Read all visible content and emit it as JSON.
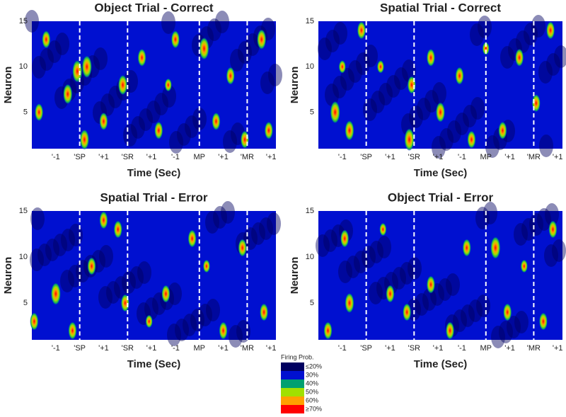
{
  "chart_data": [
    {
      "type": "heatmap",
      "title": "Object Trial - Correct",
      "xlabel": "Time (Sec)",
      "ylabel": "Neuron",
      "ylim": [
        1,
        15
      ],
      "yticks": [
        5,
        10,
        15
      ],
      "xlim": [
        0,
        10.2
      ],
      "xticks": [
        {
          "value": 1,
          "label": "'-1"
        },
        {
          "value": 2,
          "label": "'SP"
        },
        {
          "value": 3,
          "label": "'+1"
        },
        {
          "value": 4,
          "label": "'SR"
        },
        {
          "value": 5,
          "label": "'+1"
        },
        {
          "value": 6,
          "label": "'-1"
        },
        {
          "value": 7,
          "label": "MP"
        },
        {
          "value": 8,
          "label": "'+1"
        },
        {
          "value": 9,
          "label": "'MR"
        },
        {
          "value": 10,
          "label": "'+1"
        }
      ],
      "event_lines": [
        2,
        4,
        7,
        9
      ],
      "hotspots": [
        {
          "x": 0.6,
          "neuron": 13,
          "p": 70
        },
        {
          "x": 1.5,
          "neuron": 7,
          "p": 75
        },
        {
          "x": 1.9,
          "neuron": 9.5,
          "p": 80
        },
        {
          "x": 2.3,
          "neuron": 10,
          "p": 80
        },
        {
          "x": 3.0,
          "neuron": 4,
          "p": 70
        },
        {
          "x": 3.8,
          "neuron": 8,
          "p": 75
        },
        {
          "x": 4.6,
          "neuron": 11,
          "p": 70
        },
        {
          "x": 5.3,
          "neuron": 3,
          "p": 70
        },
        {
          "x": 6.0,
          "neuron": 13,
          "p": 70
        },
        {
          "x": 7.2,
          "neuron": 12,
          "p": 80
        },
        {
          "x": 7.7,
          "neuron": 4,
          "p": 70
        },
        {
          "x": 8.3,
          "neuron": 9,
          "p": 70
        },
        {
          "x": 8.9,
          "neuron": 2,
          "p": 70
        },
        {
          "x": 9.6,
          "neuron": 13,
          "p": 75
        },
        {
          "x": 0.3,
          "neuron": 5,
          "p": 70
        },
        {
          "x": 2.2,
          "neuron": 2,
          "p": 75
        },
        {
          "x": 5.7,
          "neuron": 8,
          "p": 60
        },
        {
          "x": 9.9,
          "neuron": 3,
          "p": 70
        }
      ]
    },
    {
      "type": "heatmap",
      "title": "Spatial Trial - Correct",
      "xlabel": "Time (Sec)",
      "ylabel": "Neuron",
      "ylim": [
        1,
        15
      ],
      "yticks": [
        5,
        10,
        15
      ],
      "xlim": [
        0,
        10.2
      ],
      "xticks": [
        {
          "value": 1,
          "label": "'-1"
        },
        {
          "value": 2,
          "label": "'SP"
        },
        {
          "value": 3,
          "label": "'+1"
        },
        {
          "value": 4,
          "label": "'SR"
        },
        {
          "value": 5,
          "label": "'+1"
        },
        {
          "value": 6,
          "label": "'-1"
        },
        {
          "value": 7,
          "label": "MP"
        },
        {
          "value": 8,
          "label": "'+1"
        },
        {
          "value": 9,
          "label": "'MR"
        },
        {
          "value": 10,
          "label": "'+1"
        }
      ],
      "event_lines": [
        2,
        4,
        7,
        9
      ],
      "hotspots": [
        {
          "x": 0.7,
          "neuron": 5,
          "p": 80
        },
        {
          "x": 1.3,
          "neuron": 3,
          "p": 75
        },
        {
          "x": 1.8,
          "neuron": 14,
          "p": 70
        },
        {
          "x": 2.6,
          "neuron": 10,
          "p": 60
        },
        {
          "x": 3.8,
          "neuron": 2,
          "p": 80
        },
        {
          "x": 3.9,
          "neuron": 8,
          "p": 70
        },
        {
          "x": 4.7,
          "neuron": 11,
          "p": 70
        },
        {
          "x": 5.1,
          "neuron": 5,
          "p": 75
        },
        {
          "x": 5.9,
          "neuron": 9,
          "p": 70
        },
        {
          "x": 6.4,
          "neuron": 2,
          "p": 70
        },
        {
          "x": 7.0,
          "neuron": 12,
          "p": 60
        },
        {
          "x": 7.7,
          "neuron": 3,
          "p": 70
        },
        {
          "x": 8.4,
          "neuron": 11,
          "p": 70
        },
        {
          "x": 9.1,
          "neuron": 6,
          "p": 70
        },
        {
          "x": 9.7,
          "neuron": 14,
          "p": 70
        },
        {
          "x": 1.0,
          "neuron": 10,
          "p": 60
        }
      ]
    },
    {
      "type": "heatmap",
      "title": "Spatial Trial - Error",
      "xlabel": "Time (Sec)",
      "ylabel": "Neuron",
      "ylim": [
        1,
        15
      ],
      "yticks": [
        5,
        10,
        15
      ],
      "xlim": [
        0,
        10.2
      ],
      "xticks": [
        {
          "value": 1,
          "label": "'-1"
        },
        {
          "value": 2,
          "label": "'SP"
        },
        {
          "value": 3,
          "label": "'+1"
        },
        {
          "value": 4,
          "label": "'SR"
        },
        {
          "value": 5,
          "label": "'+1"
        },
        {
          "value": 6,
          "label": "'-1"
        },
        {
          "value": 7,
          "label": "MP"
        },
        {
          "value": 8,
          "label": "'+1"
        },
        {
          "value": 9,
          "label": "'MR"
        },
        {
          "value": 10,
          "label": "'+1"
        }
      ],
      "event_lines": [
        2,
        4,
        7,
        9
      ],
      "hotspots": [
        {
          "x": 0.1,
          "neuron": 3,
          "p": 70
        },
        {
          "x": 1.0,
          "neuron": 6,
          "p": 80
        },
        {
          "x": 1.7,
          "neuron": 2,
          "p": 70
        },
        {
          "x": 2.5,
          "neuron": 9,
          "p": 70
        },
        {
          "x": 3.0,
          "neuron": 14,
          "p": 70
        },
        {
          "x": 3.6,
          "neuron": 13,
          "p": 70
        },
        {
          "x": 3.9,
          "neuron": 5,
          "p": 70
        },
        {
          "x": 4.9,
          "neuron": 3,
          "p": 60
        },
        {
          "x": 5.6,
          "neuron": 6,
          "p": 70
        },
        {
          "x": 6.7,
          "neuron": 12,
          "p": 70
        },
        {
          "x": 7.3,
          "neuron": 9,
          "p": 60
        },
        {
          "x": 8.0,
          "neuron": 2,
          "p": 70
        },
        {
          "x": 8.8,
          "neuron": 11,
          "p": 70
        },
        {
          "x": 9.7,
          "neuron": 4,
          "p": 70
        }
      ]
    },
    {
      "type": "heatmap",
      "title": "Object Trial - Error",
      "xlabel": "Time (Sec)",
      "ylabel": "Neuron",
      "ylim": [
        1,
        15
      ],
      "yticks": [
        5,
        10,
        15
      ],
      "xlim": [
        0,
        10.2
      ],
      "xticks": [
        {
          "value": 1,
          "label": "'-1"
        },
        {
          "value": 2,
          "label": "'SP"
        },
        {
          "value": 3,
          "label": "'+1"
        },
        {
          "value": 4,
          "label": "'SR"
        },
        {
          "value": 5,
          "label": "'+1"
        },
        {
          "value": 6,
          "label": "'-1"
        },
        {
          "value": 7,
          "label": "MP"
        },
        {
          "value": 8,
          "label": "'+1"
        },
        {
          "value": 9,
          "label": "'MR"
        },
        {
          "value": 10,
          "label": "'+1"
        }
      ],
      "event_lines": [
        2,
        4,
        7,
        9
      ],
      "hotspots": [
        {
          "x": 0.4,
          "neuron": 2,
          "p": 70
        },
        {
          "x": 1.1,
          "neuron": 12,
          "p": 70
        },
        {
          "x": 1.3,
          "neuron": 5,
          "p": 75
        },
        {
          "x": 2.7,
          "neuron": 13,
          "p": 60
        },
        {
          "x": 3.0,
          "neuron": 6,
          "p": 70
        },
        {
          "x": 3.7,
          "neuron": 4,
          "p": 70
        },
        {
          "x": 4.7,
          "neuron": 7,
          "p": 70
        },
        {
          "x": 5.5,
          "neuron": 2,
          "p": 70
        },
        {
          "x": 6.2,
          "neuron": 11,
          "p": 70
        },
        {
          "x": 7.4,
          "neuron": 11,
          "p": 80
        },
        {
          "x": 7.9,
          "neuron": 4,
          "p": 70
        },
        {
          "x": 8.6,
          "neuron": 9,
          "p": 60
        },
        {
          "x": 9.4,
          "neuron": 3,
          "p": 70
        },
        {
          "x": 9.8,
          "neuron": 13,
          "p": 70
        }
      ]
    }
  ],
  "colorbar": {
    "title": "Firing Prob.",
    "levels": [
      {
        "value": 20,
        "label": "≤20%"
      },
      {
        "value": 30,
        "label": "30%"
      },
      {
        "value": 40,
        "label": "40%"
      },
      {
        "value": 50,
        "label": "50%"
      },
      {
        "value": 60,
        "label": "60%"
      },
      {
        "value": 70,
        "label": "≥70%"
      }
    ],
    "colors": [
      "#000060",
      "#0010d0",
      "#00a070",
      "#a0e000",
      "#ffa000",
      "#ff0000"
    ]
  }
}
